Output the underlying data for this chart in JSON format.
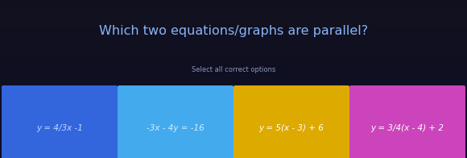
{
  "title": "Which two equations/graphs are parallel?",
  "subtitle": "Select all correct options",
  "title_color": "#8ab4f8",
  "subtitle_color": "#8899bb",
  "background_top": "#111118",
  "background_bottom": "#0d0d20",
  "cards": [
    {
      "label": "y = 4/3x -1",
      "bg_color": "#3366dd",
      "text_color": "#c0d8ff"
    },
    {
      "label": "-3x - 4y = -16",
      "bg_color": "#44aaee",
      "text_color": "#d0eeff"
    },
    {
      "label": "y = 5(x - 3) + 6",
      "bg_color": "#ddaa00",
      "text_color": "#ffffff"
    },
    {
      "label": "y = 3/4(x - 4) + 2",
      "bg_color": "#cc44bb",
      "text_color": "#ffffff"
    }
  ],
  "title_fontsize": 11.5,
  "subtitle_fontsize": 6.0,
  "card_fontsize": 7.5,
  "fig_width": 5.8,
  "fig_height": 1.96,
  "dpi": 100
}
